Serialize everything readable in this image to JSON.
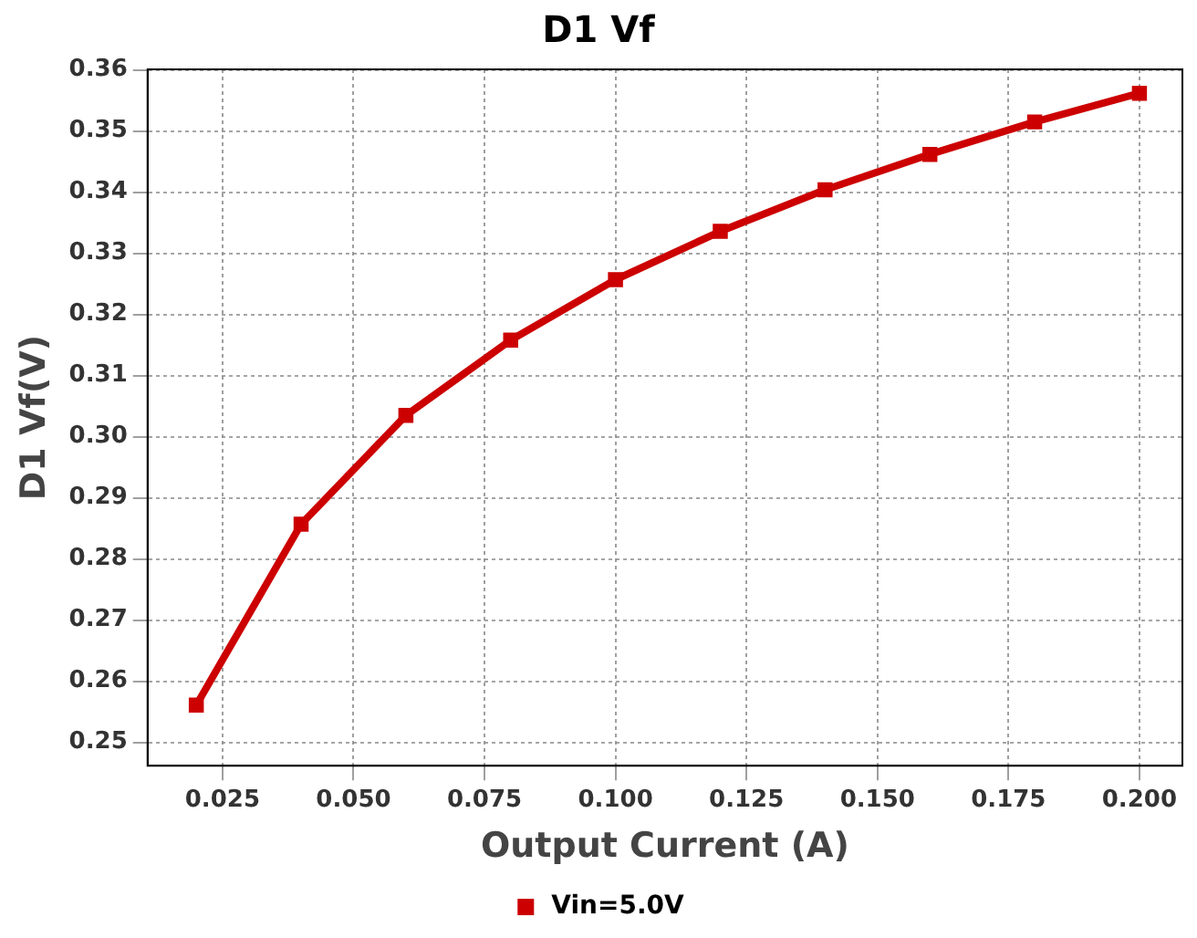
{
  "chart_data": {
    "type": "line",
    "title": "D1 Vf",
    "xlabel": "Output Current (A)",
    "ylabel": "D1 Vf(V)",
    "x": [
      0.02,
      0.04,
      0.06,
      0.08,
      0.1,
      0.12,
      0.14,
      0.16,
      0.18,
      0.2
    ],
    "series": [
      {
        "name": "Vin=5.0V",
        "color": "#cc0000",
        "values": [
          0.2561,
          0.2857,
          0.3035,
          0.3158,
          0.3257,
          0.3336,
          0.3404,
          0.3462,
          0.3515,
          0.3562
        ]
      }
    ],
    "xlim": [
      0.0107,
      0.2082
    ],
    "xticks": [
      {
        "value": 0.025,
        "label": "0.025"
      },
      {
        "value": 0.05,
        "label": "0.050"
      },
      {
        "value": 0.075,
        "label": "0.075"
      },
      {
        "value": 0.1,
        "label": "0.100"
      },
      {
        "value": 0.125,
        "label": "0.125"
      },
      {
        "value": 0.15,
        "label": "0.150"
      },
      {
        "value": 0.175,
        "label": "0.175"
      },
      {
        "value": 0.2,
        "label": "0.200"
      }
    ],
    "ylim": [
      0.2462,
      0.3601
    ],
    "yticks": [
      0.25,
      0.26,
      0.27,
      0.28,
      0.29,
      {
        "value": 0.3,
        "label": "0.30"
      },
      0.31,
      0.32,
      0.33,
      0.34,
      0.35,
      0.36
    ],
    "grid": true,
    "legend": "bottom",
    "marker": "square",
    "line_style": "solid"
  }
}
